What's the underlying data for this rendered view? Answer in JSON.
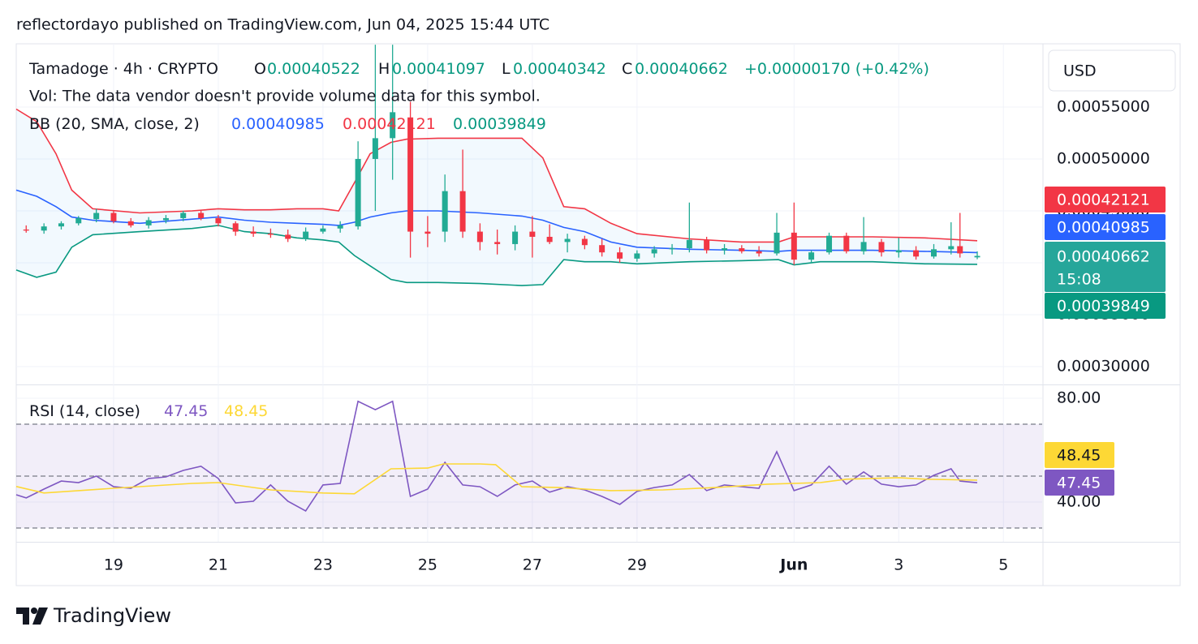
{
  "attribution": "reflectordayo published on TradingView.com, Jun 04, 2025 15:44 UTC",
  "footer": "TradingView",
  "chart_data": [
    {
      "type": "candlestick",
      "symbol": "Tamadoge · 4h · CRYPTO",
      "ohlc_labels": [
        "O",
        "H",
        "L",
        "C"
      ],
      "change_label": "+0.00000170 (+0.42%)",
      "volume_note": "Vol: The data vendor doesn't provide volume data for this symbol.",
      "currency": "USD",
      "countdown": "15:08",
      "up_color": "#22ab94",
      "down_color": "#f23645",
      "x": [
        17.33,
        17.67,
        18,
        18.33,
        18.67,
        19,
        19.33,
        19.67,
        20,
        20.33,
        20.67,
        21,
        21.33,
        21.67,
        22,
        22.33,
        22.67,
        23,
        23.33,
        23.67,
        24,
        24.33,
        24.67,
        25,
        25.33,
        25.67,
        26,
        26.33,
        26.67,
        27,
        27.33,
        27.67,
        28,
        28.33,
        28.67,
        29,
        29.33,
        29.67,
        30,
        30.33,
        30.67,
        31,
        31.33,
        31.67,
        32,
        32.33,
        32.67,
        33,
        33.33,
        33.67,
        34,
        34.33,
        34.67,
        35,
        35.17,
        35.5
      ],
      "open": [
        0.000432,
        0.000431,
        0.000435,
        0.000438,
        0.000442,
        0.000448,
        0.00044,
        0.000436,
        0.000441,
        0.000443,
        0.000448,
        0.000443,
        0.000438,
        0.00043,
        0.000428,
        0.000427,
        0.000423,
        0.00043,
        0.000433,
        0.000435,
        0.0005,
        0.00052,
        0.00054,
        0.00043,
        0.00043,
        0.000469,
        0.00043,
        0.00042,
        0.000418,
        0.00043,
        0.000425,
        0.00042,
        0.000423,
        0.000417,
        0.00041,
        0.000404,
        0.000409,
        0.000413,
        0.000414,
        0.000422,
        0.000412,
        0.000414,
        0.000411,
        0.000409,
        0.000429,
        0.000403,
        0.00041,
        0.000426,
        0.000411,
        0.00042,
        0.00041,
        0.000412,
        0.000406,
        0.000413,
        0.000416,
        0.00040522
      ],
      "high": [
        0.000436,
        0.000438,
        0.00044,
        0.000445,
        0.000452,
        0.00045,
        0.000443,
        0.000444,
        0.000446,
        0.00045,
        0.000451,
        0.000446,
        0.00044,
        0.000435,
        0.000433,
        0.000432,
        0.000434,
        0.000436,
        0.00044,
        0.000517,
        0.00061,
        0.00061,
        0.000555,
        0.000445,
        0.000485,
        0.000509,
        0.000438,
        0.000432,
        0.000436,
        0.000445,
        0.000437,
        0.000428,
        0.000426,
        0.000423,
        0.000415,
        0.000412,
        0.000416,
        0.000418,
        0.000458,
        0.000425,
        0.000418,
        0.000417,
        0.000416,
        0.000448,
        0.000458,
        0.000412,
        0.000429,
        0.000429,
        0.000444,
        0.000423,
        0.000424,
        0.000416,
        0.000418,
        0.000439,
        0.000448,
        0.00041097
      ],
      "low": [
        0.000429,
        0.000428,
        0.000432,
        0.000436,
        0.000439,
        0.000438,
        0.000434,
        0.000433,
        0.000438,
        0.00044,
        0.000441,
        0.000435,
        0.000426,
        0.000425,
        0.000424,
        0.00042,
        0.000421,
        0.000428,
        0.000429,
        0.000432,
        0.00045,
        0.00048,
        0.000405,
        0.000415,
        0.00042,
        0.000424,
        0.000412,
        0.000408,
        0.000412,
        0.000405,
        0.000418,
        0.00041,
        0.000413,
        0.000406,
        0.0004,
        0.000401,
        0.000405,
        0.000408,
        0.00041,
        0.000409,
        0.000408,
        0.000409,
        0.000406,
        0.000407,
        0.000398,
        0.0004,
        0.000408,
        0.000409,
        0.000408,
        0.000406,
        0.000405,
        0.000403,
        0.000404,
        0.000408,
        0.000405,
        0.00040342
      ],
      "close": [
        0.000431,
        0.000435,
        0.000438,
        0.000443,
        0.000448,
        0.00044,
        0.000436,
        0.000441,
        0.000443,
        0.000448,
        0.000443,
        0.000438,
        0.00043,
        0.000428,
        0.000427,
        0.000423,
        0.00043,
        0.000433,
        0.000436,
        0.0005,
        0.00052,
        0.000545,
        0.00043,
        0.000428,
        0.000469,
        0.00043,
        0.00042,
        0.000418,
        0.00043,
        0.000425,
        0.00042,
        0.000423,
        0.000417,
        0.00041,
        0.000404,
        0.000409,
        0.000413,
        0.000414,
        0.000422,
        0.000412,
        0.000414,
        0.000411,
        0.000409,
        0.000429,
        0.000403,
        0.00041,
        0.000426,
        0.000411,
        0.00042,
        0.00041,
        0.000412,
        0.000406,
        0.000413,
        0.000416,
        0.000409,
        0.00040662
      ],
      "indicator": {
        "name": "BB (20, SMA, close, 2)",
        "x": [
          17.14,
          17.53,
          17.9,
          18.2,
          18.6,
          19.5,
          20.5,
          21,
          21.5,
          22,
          22.5,
          23,
          23.3,
          23.6,
          23.9,
          24.3,
          24.6,
          25.2,
          26,
          26.8,
          27.2,
          27.6,
          28,
          28.5,
          29,
          30,
          31,
          31.7,
          32,
          32.5,
          33.5,
          34.5,
          35.5
        ],
        "fill": "rgba(33,150,243,0.06)",
        "series": [
          {
            "color": "#2962ff",
            "values": [
              0.00047,
              0.000464,
              0.000454,
              0.000444,
              0.000441,
              0.000438,
              0.000442,
              0.000444,
              0.000441,
              0.000439,
              0.000438,
              0.000437,
              0.000436,
              0.000439,
              0.000444,
              0.000448,
              0.00045,
              0.00045,
              0.000448,
              0.000445,
              0.000441,
              0.000434,
              0.00043,
              0.00042,
              0.000415,
              0.000413,
              0.000412,
              0.000411,
              0.000412,
              0.000412,
              0.000412,
              0.000411,
              0.00040985
            ]
          },
          {
            "color": "#f23645",
            "values": [
              0.000548,
              0.000536,
              0.000505,
              0.00047,
              0.000452,
              0.000448,
              0.00045,
              0.000452,
              0.000451,
              0.000451,
              0.000452,
              0.000452,
              0.00045,
              0.000477,
              0.000505,
              0.000516,
              0.000519,
              0.00052,
              0.00052,
              0.00052,
              0.000501,
              0.000454,
              0.000452,
              0.000438,
              0.000428,
              0.000423,
              0.00042,
              0.00042,
              0.000425,
              0.000425,
              0.000425,
              0.000424,
              0.00042121
            ]
          },
          {
            "color": "#089981",
            "values": [
              0.000393,
              0.000386,
              0.000391,
              0.000415,
              0.000427,
              0.00043,
              0.000433,
              0.000436,
              0.00043,
              0.000428,
              0.000424,
              0.000422,
              0.00042,
              0.000407,
              0.000397,
              0.000384,
              0.000381,
              0.000381,
              0.00038,
              0.000378,
              0.000379,
              0.000403,
              0.000401,
              0.000401,
              0.000399,
              0.000401,
              0.000402,
              0.000403,
              0.000398,
              0.000401,
              0.000401,
              0.000399,
              0.00039849
            ]
          }
        ]
      },
      "xlim": [
        17.14,
        36.74
      ],
      "xticks": [
        19,
        21,
        23,
        25,
        27,
        29,
        {
          "value": 32,
          "label": "Jun"
        },
        {
          "value": 34,
          "label": "3"
        },
        {
          "value": 36,
          "label": "5"
        }
      ],
      "ylim": [
        0.0002828,
        0.0006109
      ],
      "yticks": [
        {
          "value": 0.0003,
          "label": "0.00030000"
        },
        {
          "value": 0.00035,
          "label": "0.00035000"
        },
        {
          "value": 0.0004,
          "label": "0.00040000"
        },
        {
          "value": 0.00045,
          "label": "0.00045000"
        },
        {
          "value": 0.0005,
          "label": "0.00050000"
        },
        {
          "value": 0.00055,
          "label": "0.00055000"
        }
      ],
      "grid": true
    },
    {
      "type": "line",
      "title": "RSI (14, close)",
      "band_fill": "rgba(126,87,194,0.1)",
      "levels": [
        70,
        50,
        30
      ],
      "series": [
        {
          "color": "#7e57c2",
          "x": [
            17.14,
            17.33,
            17.67,
            18,
            18.33,
            18.67,
            19,
            19.33,
            19.67,
            20,
            20.33,
            20.67,
            21,
            21.33,
            21.67,
            22,
            22.33,
            22.67,
            23,
            23.33,
            23.67,
            24,
            24.33,
            24.67,
            25,
            25.33,
            25.67,
            26,
            26.33,
            26.67,
            27,
            27.33,
            27.67,
            28,
            28.33,
            28.67,
            29,
            29.33,
            29.67,
            30,
            30.33,
            30.67,
            31,
            31.33,
            31.67,
            32,
            32.33,
            32.67,
            33,
            33.33,
            33.67,
            34,
            34.33,
            34.67,
            35,
            35.17,
            35.5
          ],
          "values": [
            42.8,
            41.6,
            45,
            48.1,
            47.5,
            50,
            45.9,
            45.3,
            49.1,
            49.7,
            52.2,
            53.8,
            49.1,
            39.7,
            40.3,
            46.6,
            40.3,
            36.6,
            46.6,
            47.2,
            78.8,
            75.6,
            78.8,
            42.2,
            45,
            55.3,
            46.6,
            45.9,
            42.2,
            46.6,
            48.1,
            43.8,
            45.9,
            44.7,
            42.2,
            39.1,
            44.1,
            45.6,
            46.6,
            50.6,
            44.4,
            46.6,
            45.9,
            45.3,
            59.4,
            44.4,
            46.6,
            53.8,
            46.9,
            51.6,
            46.9,
            45.9,
            46.6,
            50.3,
            52.8,
            48.1,
            47.45
          ]
        },
        {
          "color": "#fdd835",
          "x": [
            17.14,
            17.67,
            19,
            20.5,
            21,
            22,
            23,
            23.6,
            24.3,
            25,
            25.3,
            26,
            26.3,
            26.8,
            27.5,
            28.5,
            29.5,
            30.5,
            31.5,
            32.5,
            33,
            34,
            34.5,
            35.5
          ],
          "values": [
            46.0,
            43.5,
            45.3,
            47.2,
            47.5,
            44.7,
            43.5,
            43.2,
            52.8,
            53.1,
            54.7,
            54.7,
            54.4,
            45.9,
            45.6,
            44.4,
            44.7,
            45.6,
            46.9,
            47.5,
            48.8,
            49.4,
            48.8,
            48.45
          ]
        }
      ],
      "xlim": [
        17.14,
        36.74
      ],
      "ylim": [
        24.69,
        85
      ],
      "yticks": [
        {
          "value": 40,
          "label": "40.00"
        },
        {
          "value": 80,
          "label": "80.00"
        }
      ],
      "grid": true
    }
  ]
}
